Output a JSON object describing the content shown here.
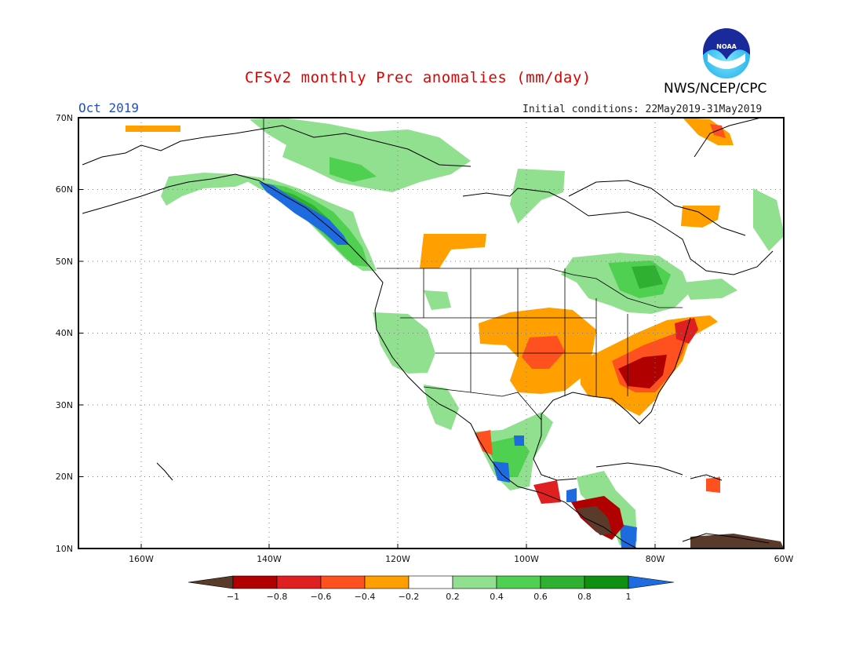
{
  "header": {
    "title": "CFSv2 monthly Prec anomalies (mm/day)",
    "month": "Oct 2019",
    "initial_conditions": "Initial conditions: 22May2019-31May2019",
    "agency": "NWS/NCEP/CPC",
    "logo_text": "NOAA"
  },
  "map": {
    "lat_labels": [
      "70N",
      "60N",
      "50N",
      "40N",
      "30N",
      "20N",
      "10N"
    ],
    "lon_labels": [
      "160W",
      "140W",
      "120W",
      "100W",
      "80W",
      "60W"
    ]
  },
  "colorbar": {
    "tick_labels": [
      "-1",
      "-0.8",
      "-0.6",
      "-0.4",
      "-0.2",
      "0.2",
      "0.4",
      "0.6",
      "0.8",
      "1"
    ],
    "colors": [
      "#5a3a2a",
      "#b00000",
      "#e02020",
      "#ff5020",
      "#ffa000",
      "#ffffff",
      "#90e090",
      "#50d050",
      "#30b030",
      "#109010",
      "#1e6be0"
    ]
  },
  "legend_colors": {
    "le_-1": "#5a3a2a",
    "m1_m08": "#b00000",
    "m08_m06": "#e02020",
    "m06_m04": "#ff5020",
    "m04_m02": "#ffa000",
    "p02_p04": "#90e090",
    "p04_p06": "#50d050",
    "p06_p08": "#30b030",
    "p08_p1": "#109010",
    "ge_1": "#1e6be0"
  }
}
